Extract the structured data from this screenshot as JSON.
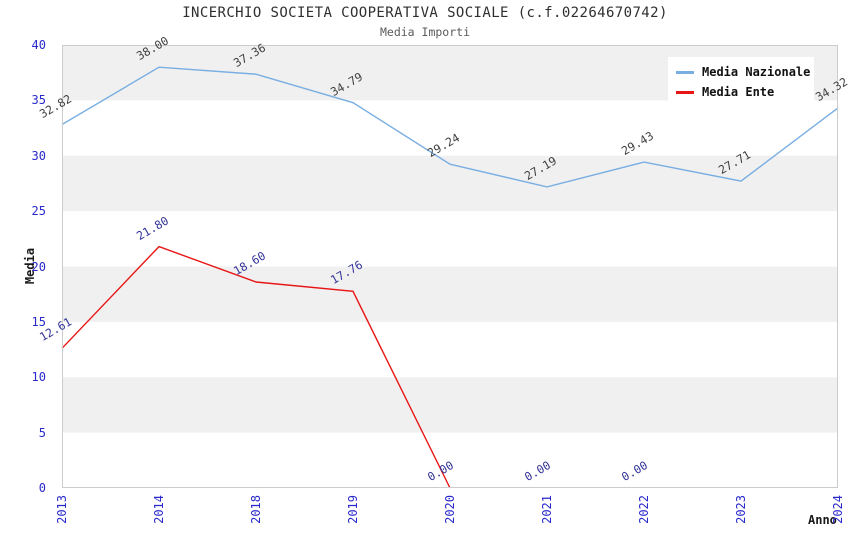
{
  "header": {
    "title": "INCERCHIO SOCIETA COOPERATIVA SOCIALE (c.f.02264670742)",
    "subtitle": "Media Importi"
  },
  "chart_data": {
    "type": "line",
    "title": "INCERCHIO SOCIETA COOPERATIVA SOCIALE (c.f.02264670742)",
    "subtitle": "Media Importi",
    "xlabel": "Anno",
    "ylabel": "Media",
    "categories": [
      "2013",
      "2014",
      "2018",
      "2019",
      "2020",
      "2021",
      "2022",
      "2023",
      "2024"
    ],
    "series": [
      {
        "name": "Media Nazionale",
        "color": "#79aee3",
        "label_color": "#3f3f3f",
        "values": [
          32.82,
          38.0,
          37.36,
          34.79,
          29.24,
          27.19,
          29.43,
          27.71,
          34.32
        ]
      },
      {
        "name": "Media Ente",
        "color": "#e81515",
        "label_color": "#333399",
        "values": [
          12.61,
          21.8,
          18.6,
          17.76,
          0.0,
          0.0,
          0.0,
          null,
          null
        ],
        "line_end_index": 4
      }
    ],
    "ylim": [
      0,
      40
    ],
    "y_tick_step": 5,
    "x_tick_color": "#2929cc",
    "y_tick_color": "#2929cc",
    "band_color": "#f0f0f0",
    "frame_color": "#cccccc",
    "legend_position": "top-right",
    "grid": "alternating-horizontal-bands"
  }
}
